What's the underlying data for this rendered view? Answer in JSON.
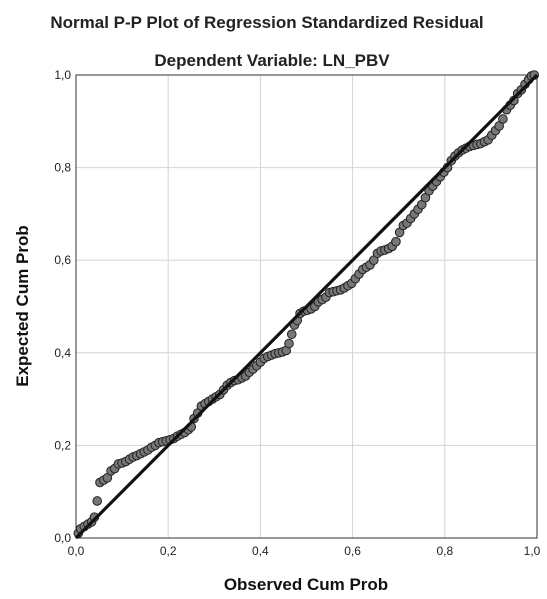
{
  "chart_data": {
    "type": "scatter",
    "title": "Normal P-P Plot of Regression Standardized Residual",
    "subtitle": "Dependent Variable: LN_PBV",
    "xlabel": "Observed Cum Prob",
    "ylabel": "Expected Cum Prob",
    "xlim": [
      0,
      1
    ],
    "ylim": [
      0,
      1
    ],
    "x_ticks": [
      "0,0",
      "0,2",
      "0,4",
      "0,6",
      "0,8",
      "1,0"
    ],
    "y_ticks": [
      "0,0",
      "0,2",
      "0,4",
      "0,6",
      "0,8",
      "1,0"
    ],
    "tick_values": [
      0,
      0.2,
      0.4,
      0.6,
      0.8,
      1.0
    ],
    "grid": true,
    "reference_line": [
      [
        0,
        0
      ],
      [
        1,
        1
      ]
    ],
    "points": [
      [
        0.005,
        0.01
      ],
      [
        0.01,
        0.02
      ],
      [
        0.018,
        0.025
      ],
      [
        0.026,
        0.03
      ],
      [
        0.034,
        0.035
      ],
      [
        0.04,
        0.045
      ],
      [
        0.046,
        0.08
      ],
      [
        0.052,
        0.12
      ],
      [
        0.06,
        0.125
      ],
      [
        0.068,
        0.13
      ],
      [
        0.076,
        0.145
      ],
      [
        0.084,
        0.15
      ],
      [
        0.092,
        0.16
      ],
      [
        0.1,
        0.162
      ],
      [
        0.108,
        0.165
      ],
      [
        0.116,
        0.17
      ],
      [
        0.124,
        0.175
      ],
      [
        0.132,
        0.178
      ],
      [
        0.14,
        0.182
      ],
      [
        0.148,
        0.186
      ],
      [
        0.156,
        0.19
      ],
      [
        0.164,
        0.196
      ],
      [
        0.172,
        0.2
      ],
      [
        0.18,
        0.206
      ],
      [
        0.188,
        0.208
      ],
      [
        0.196,
        0.21
      ],
      [
        0.204,
        0.212
      ],
      [
        0.212,
        0.215
      ],
      [
        0.22,
        0.22
      ],
      [
        0.228,
        0.224
      ],
      [
        0.236,
        0.228
      ],
      [
        0.244,
        0.234
      ],
      [
        0.25,
        0.24
      ],
      [
        0.256,
        0.258
      ],
      [
        0.264,
        0.27
      ],
      [
        0.272,
        0.285
      ],
      [
        0.28,
        0.29
      ],
      [
        0.288,
        0.295
      ],
      [
        0.296,
        0.3
      ],
      [
        0.304,
        0.305
      ],
      [
        0.312,
        0.31
      ],
      [
        0.32,
        0.32
      ],
      [
        0.328,
        0.33
      ],
      [
        0.336,
        0.336
      ],
      [
        0.344,
        0.34
      ],
      [
        0.352,
        0.342
      ],
      [
        0.36,
        0.346
      ],
      [
        0.368,
        0.35
      ],
      [
        0.376,
        0.358
      ],
      [
        0.384,
        0.365
      ],
      [
        0.392,
        0.372
      ],
      [
        0.4,
        0.38
      ],
      [
        0.408,
        0.388
      ],
      [
        0.416,
        0.392
      ],
      [
        0.424,
        0.395
      ],
      [
        0.432,
        0.398
      ],
      [
        0.44,
        0.4
      ],
      [
        0.448,
        0.402
      ],
      [
        0.456,
        0.405
      ],
      [
        0.462,
        0.42
      ],
      [
        0.468,
        0.44
      ],
      [
        0.474,
        0.46
      ],
      [
        0.48,
        0.47
      ],
      [
        0.486,
        0.485
      ],
      [
        0.494,
        0.49
      ],
      [
        0.502,
        0.492
      ],
      [
        0.51,
        0.495
      ],
      [
        0.518,
        0.5
      ],
      [
        0.526,
        0.51
      ],
      [
        0.534,
        0.515
      ],
      [
        0.542,
        0.52
      ],
      [
        0.55,
        0.53
      ],
      [
        0.558,
        0.532
      ],
      [
        0.566,
        0.534
      ],
      [
        0.574,
        0.536
      ],
      [
        0.582,
        0.54
      ],
      [
        0.59,
        0.545
      ],
      [
        0.598,
        0.55
      ],
      [
        0.606,
        0.56
      ],
      [
        0.614,
        0.57
      ],
      [
        0.622,
        0.58
      ],
      [
        0.63,
        0.585
      ],
      [
        0.638,
        0.59
      ],
      [
        0.646,
        0.6
      ],
      [
        0.654,
        0.615
      ],
      [
        0.662,
        0.62
      ],
      [
        0.67,
        0.622
      ],
      [
        0.678,
        0.625
      ],
      [
        0.686,
        0.63
      ],
      [
        0.694,
        0.64
      ],
      [
        0.702,
        0.66
      ],
      [
        0.71,
        0.675
      ],
      [
        0.718,
        0.68
      ],
      [
        0.726,
        0.69
      ],
      [
        0.734,
        0.7
      ],
      [
        0.742,
        0.71
      ],
      [
        0.75,
        0.72
      ],
      [
        0.758,
        0.735
      ],
      [
        0.766,
        0.75
      ],
      [
        0.774,
        0.76
      ],
      [
        0.782,
        0.77
      ],
      [
        0.79,
        0.78
      ],
      [
        0.798,
        0.79
      ],
      [
        0.806,
        0.8
      ],
      [
        0.814,
        0.815
      ],
      [
        0.822,
        0.825
      ],
      [
        0.83,
        0.832
      ],
      [
        0.838,
        0.838
      ],
      [
        0.846,
        0.842
      ],
      [
        0.854,
        0.846
      ],
      [
        0.862,
        0.848
      ],
      [
        0.87,
        0.85
      ],
      [
        0.878,
        0.852
      ],
      [
        0.886,
        0.856
      ],
      [
        0.894,
        0.86
      ],
      [
        0.902,
        0.87
      ],
      [
        0.91,
        0.88
      ],
      [
        0.918,
        0.89
      ],
      [
        0.926,
        0.905
      ],
      [
        0.934,
        0.925
      ],
      [
        0.942,
        0.935
      ],
      [
        0.95,
        0.945
      ],
      [
        0.958,
        0.96
      ],
      [
        0.966,
        0.968
      ],
      [
        0.974,
        0.98
      ],
      [
        0.982,
        0.99
      ],
      [
        0.988,
        0.998
      ],
      [
        0.994,
        1.0
      ]
    ]
  },
  "colors": {
    "point_fill": "#777777",
    "point_stroke": "#222222",
    "reference_line": "#111111",
    "grid": "#d4d4d4"
  }
}
